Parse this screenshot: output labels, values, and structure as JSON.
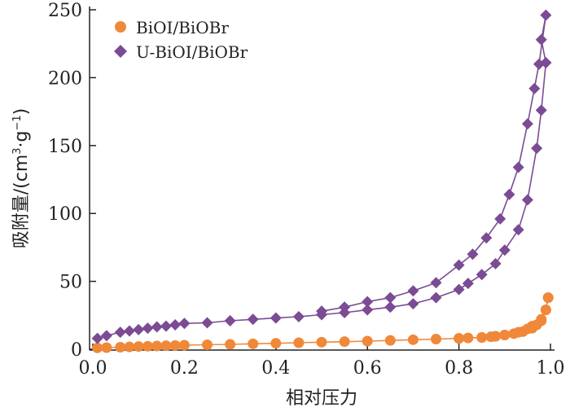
{
  "chart_data": {
    "type": "scatter",
    "xlabel": "相对压力",
    "ylabel": {
      "main": "吸附量/(cm",
      "sup1": "3",
      "mid": "·g",
      "sup2": "−1",
      "end": ")"
    },
    "xlim": [
      0,
      1.0
    ],
    "ylim": [
      0,
      250
    ],
    "x_ticks": [
      "0.0",
      "0.2",
      "0.4",
      "0.6",
      "0.8",
      "1.0"
    ],
    "y_ticks": [
      "0",
      "50",
      "100",
      "150",
      "200",
      "250"
    ],
    "grid": false,
    "legend_position": "top-left",
    "series": [
      {
        "name": "BiOI/BiOBr",
        "marker": "circle",
        "color": "#f0883a",
        "adsorption": [
          [
            0.01,
            1
          ],
          [
            0.03,
            1.2
          ],
          [
            0.06,
            1.5
          ],
          [
            0.08,
            1.7
          ],
          [
            0.1,
            2
          ],
          [
            0.12,
            2.2
          ],
          [
            0.14,
            2.4
          ],
          [
            0.16,
            2.6
          ],
          [
            0.18,
            2.8
          ],
          [
            0.2,
            3
          ],
          [
            0.25,
            3.3
          ],
          [
            0.3,
            3.6
          ],
          [
            0.35,
            4
          ],
          [
            0.4,
            4.4
          ],
          [
            0.45,
            4.8
          ],
          [
            0.5,
            5.2
          ],
          [
            0.55,
            5.6
          ],
          [
            0.6,
            6
          ],
          [
            0.65,
            6.5
          ],
          [
            0.7,
            7
          ],
          [
            0.75,
            7.5
          ],
          [
            0.8,
            8
          ],
          [
            0.82,
            8.3
          ],
          [
            0.85,
            8.7
          ],
          [
            0.87,
            9.2
          ],
          [
            0.88,
            9.6
          ],
          [
            0.9,
            10.5
          ],
          [
            0.92,
            11.5
          ],
          [
            0.94,
            13
          ],
          [
            0.96,
            15.5
          ],
          [
            0.97,
            18
          ],
          [
            0.98,
            22
          ],
          [
            0.99,
            29
          ],
          [
            0.995,
            38
          ]
        ],
        "desorption": [
          [
            0.995,
            38
          ],
          [
            0.99,
            29
          ],
          [
            0.98,
            21
          ],
          [
            0.96,
            17
          ],
          [
            0.95,
            15
          ],
          [
            0.93,
            12.5
          ],
          [
            0.9,
            10.5
          ],
          [
            0.88,
            9.5
          ],
          [
            0.85,
            8.7
          ],
          [
            0.8,
            8
          ]
        ]
      },
      {
        "name": "U-BiOI/BiOBr",
        "marker": "diamond",
        "color": "#7b4b94",
        "adsorption": [
          [
            0.01,
            8
          ],
          [
            0.03,
            10
          ],
          [
            0.06,
            12.5
          ],
          [
            0.08,
            13.5
          ],
          [
            0.1,
            14.5
          ],
          [
            0.12,
            15.5
          ],
          [
            0.14,
            16.5
          ],
          [
            0.16,
            17
          ],
          [
            0.18,
            18
          ],
          [
            0.2,
            19
          ],
          [
            0.25,
            19.5
          ],
          [
            0.3,
            21
          ],
          [
            0.35,
            22
          ],
          [
            0.4,
            23
          ],
          [
            0.45,
            24
          ],
          [
            0.5,
            25.5
          ],
          [
            0.55,
            27
          ],
          [
            0.6,
            29
          ],
          [
            0.65,
            31
          ],
          [
            0.7,
            33.5
          ],
          [
            0.75,
            38
          ],
          [
            0.8,
            44
          ],
          [
            0.82,
            48.5
          ],
          [
            0.85,
            55
          ],
          [
            0.88,
            63
          ],
          [
            0.9,
            73
          ],
          [
            0.93,
            88
          ],
          [
            0.95,
            110
          ],
          [
            0.97,
            148
          ],
          [
            0.98,
            176
          ],
          [
            0.99,
            211
          ]
        ],
        "desorption": [
          [
            0.99,
            211
          ],
          [
            0.98,
            228
          ],
          [
            0.99,
            246
          ],
          [
            0.975,
            210
          ],
          [
            0.965,
            192
          ],
          [
            0.95,
            166
          ],
          [
            0.93,
            134
          ],
          [
            0.91,
            114
          ],
          [
            0.89,
            96
          ],
          [
            0.86,
            82
          ],
          [
            0.83,
            70
          ],
          [
            0.8,
            62
          ],
          [
            0.75,
            49
          ],
          [
            0.7,
            43
          ],
          [
            0.65,
            38
          ],
          [
            0.6,
            35
          ],
          [
            0.55,
            31
          ],
          [
            0.5,
            28
          ]
        ]
      }
    ]
  }
}
